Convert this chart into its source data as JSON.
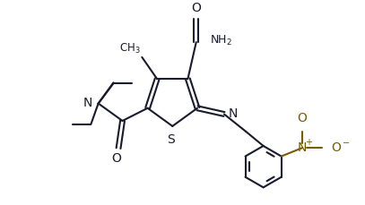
{
  "bg_color": "#ffffff",
  "line_color": "#1a1a2e",
  "nitro_color": "#7a5c00",
  "line_width": 1.5,
  "figsize": [
    4.07,
    2.29
  ],
  "dpi": 100,
  "xlim": [
    0,
    10.2
  ],
  "ylim": [
    0,
    5.8
  ]
}
